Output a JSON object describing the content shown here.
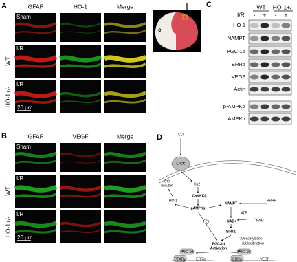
{
  "panel_a": {
    "label": "A",
    "columns": [
      "GFAP",
      "HO-1",
      "Merge"
    ],
    "rows": [
      "Sham",
      "I/R",
      "I/R"
    ],
    "groups": [
      "WT",
      "HO-1+/-"
    ],
    "scale_bar": "20 μm",
    "brain_label": "c"
  },
  "panel_b": {
    "label": "B",
    "columns": [
      "GFAP",
      "VEGF",
      "Merge"
    ],
    "rows": [
      "Sham",
      "I/R",
      "I/R"
    ],
    "groups": [
      "WT",
      "HO-1+/-"
    ],
    "scale_bar": "20 μm"
  },
  "panel_c": {
    "label": "C",
    "groups": [
      "WT",
      "HO-1+/-"
    ],
    "condition": "I/R",
    "signs": [
      "-",
      "+",
      "-",
      "+"
    ],
    "bands": [
      "HO-1",
      "NAMPT",
      "PGC-1α",
      "ERRα",
      "VEGF",
      "Actin",
      "p-AMPKα",
      "AMPKα"
    ]
  },
  "panel_d": {
    "label": "D",
    "nodes": [
      "CO",
      "LTCC",
      "CO",
      "bilirubin",
      "Ca2+",
      "CaMKKβ",
      "HO-1",
      "pAMPKα",
      "NAMPT",
      "PRPP",
      "ATP",
      "NAM",
      "NAD+",
      "SIRT1",
      "?Deacetylation",
      "/Ubiquitination",
      "PGC-1α",
      "Activation",
      "PGC-1α",
      "PPARγ",
      "ERRα",
      "PGC-1α",
      "ERRα",
      "VEGF",
      "?"
    ]
  }
}
